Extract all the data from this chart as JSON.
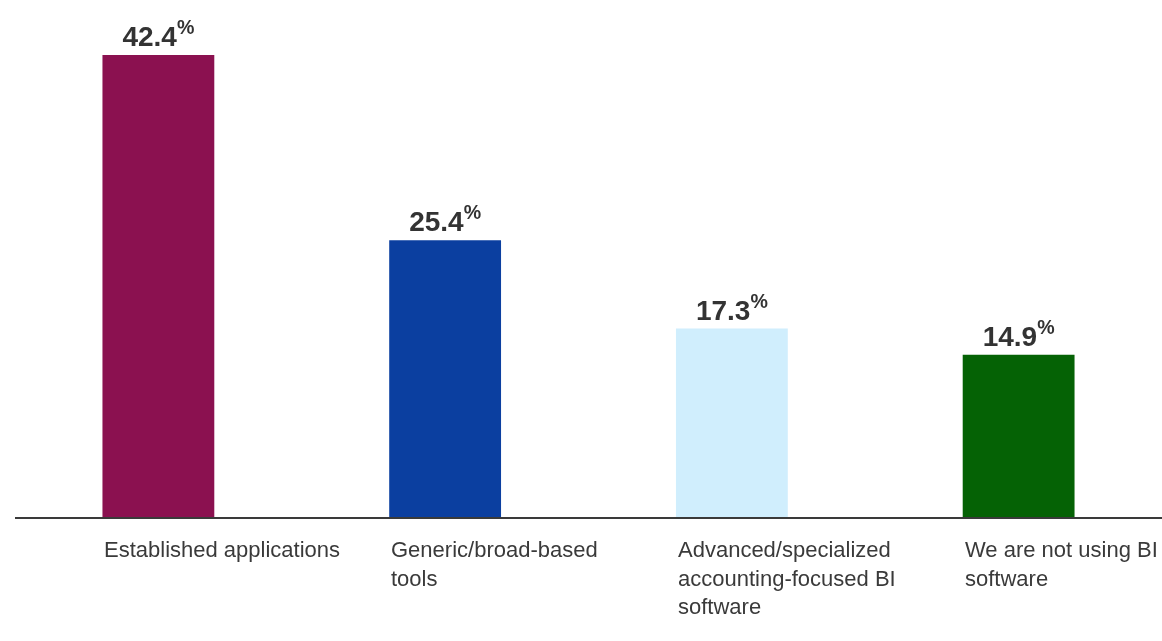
{
  "chart_data": {
    "type": "bar",
    "categories": [
      "Established applications",
      "Generic/broad-based tools",
      "Advanced/specialized accounting-focused BI software",
      "We are not using BI software"
    ],
    "values": [
      42.4,
      25.4,
      17.3,
      14.9
    ],
    "colors": [
      "#8b1150",
      "#0b3fa0",
      "#d0eefd",
      "#056205"
    ],
    "value_labels": [
      "42.4$^{%}$",
      "25.4$^{%}$",
      "17.3$^{%}$",
      "14.9$^{%}$"
    ]
  }
}
